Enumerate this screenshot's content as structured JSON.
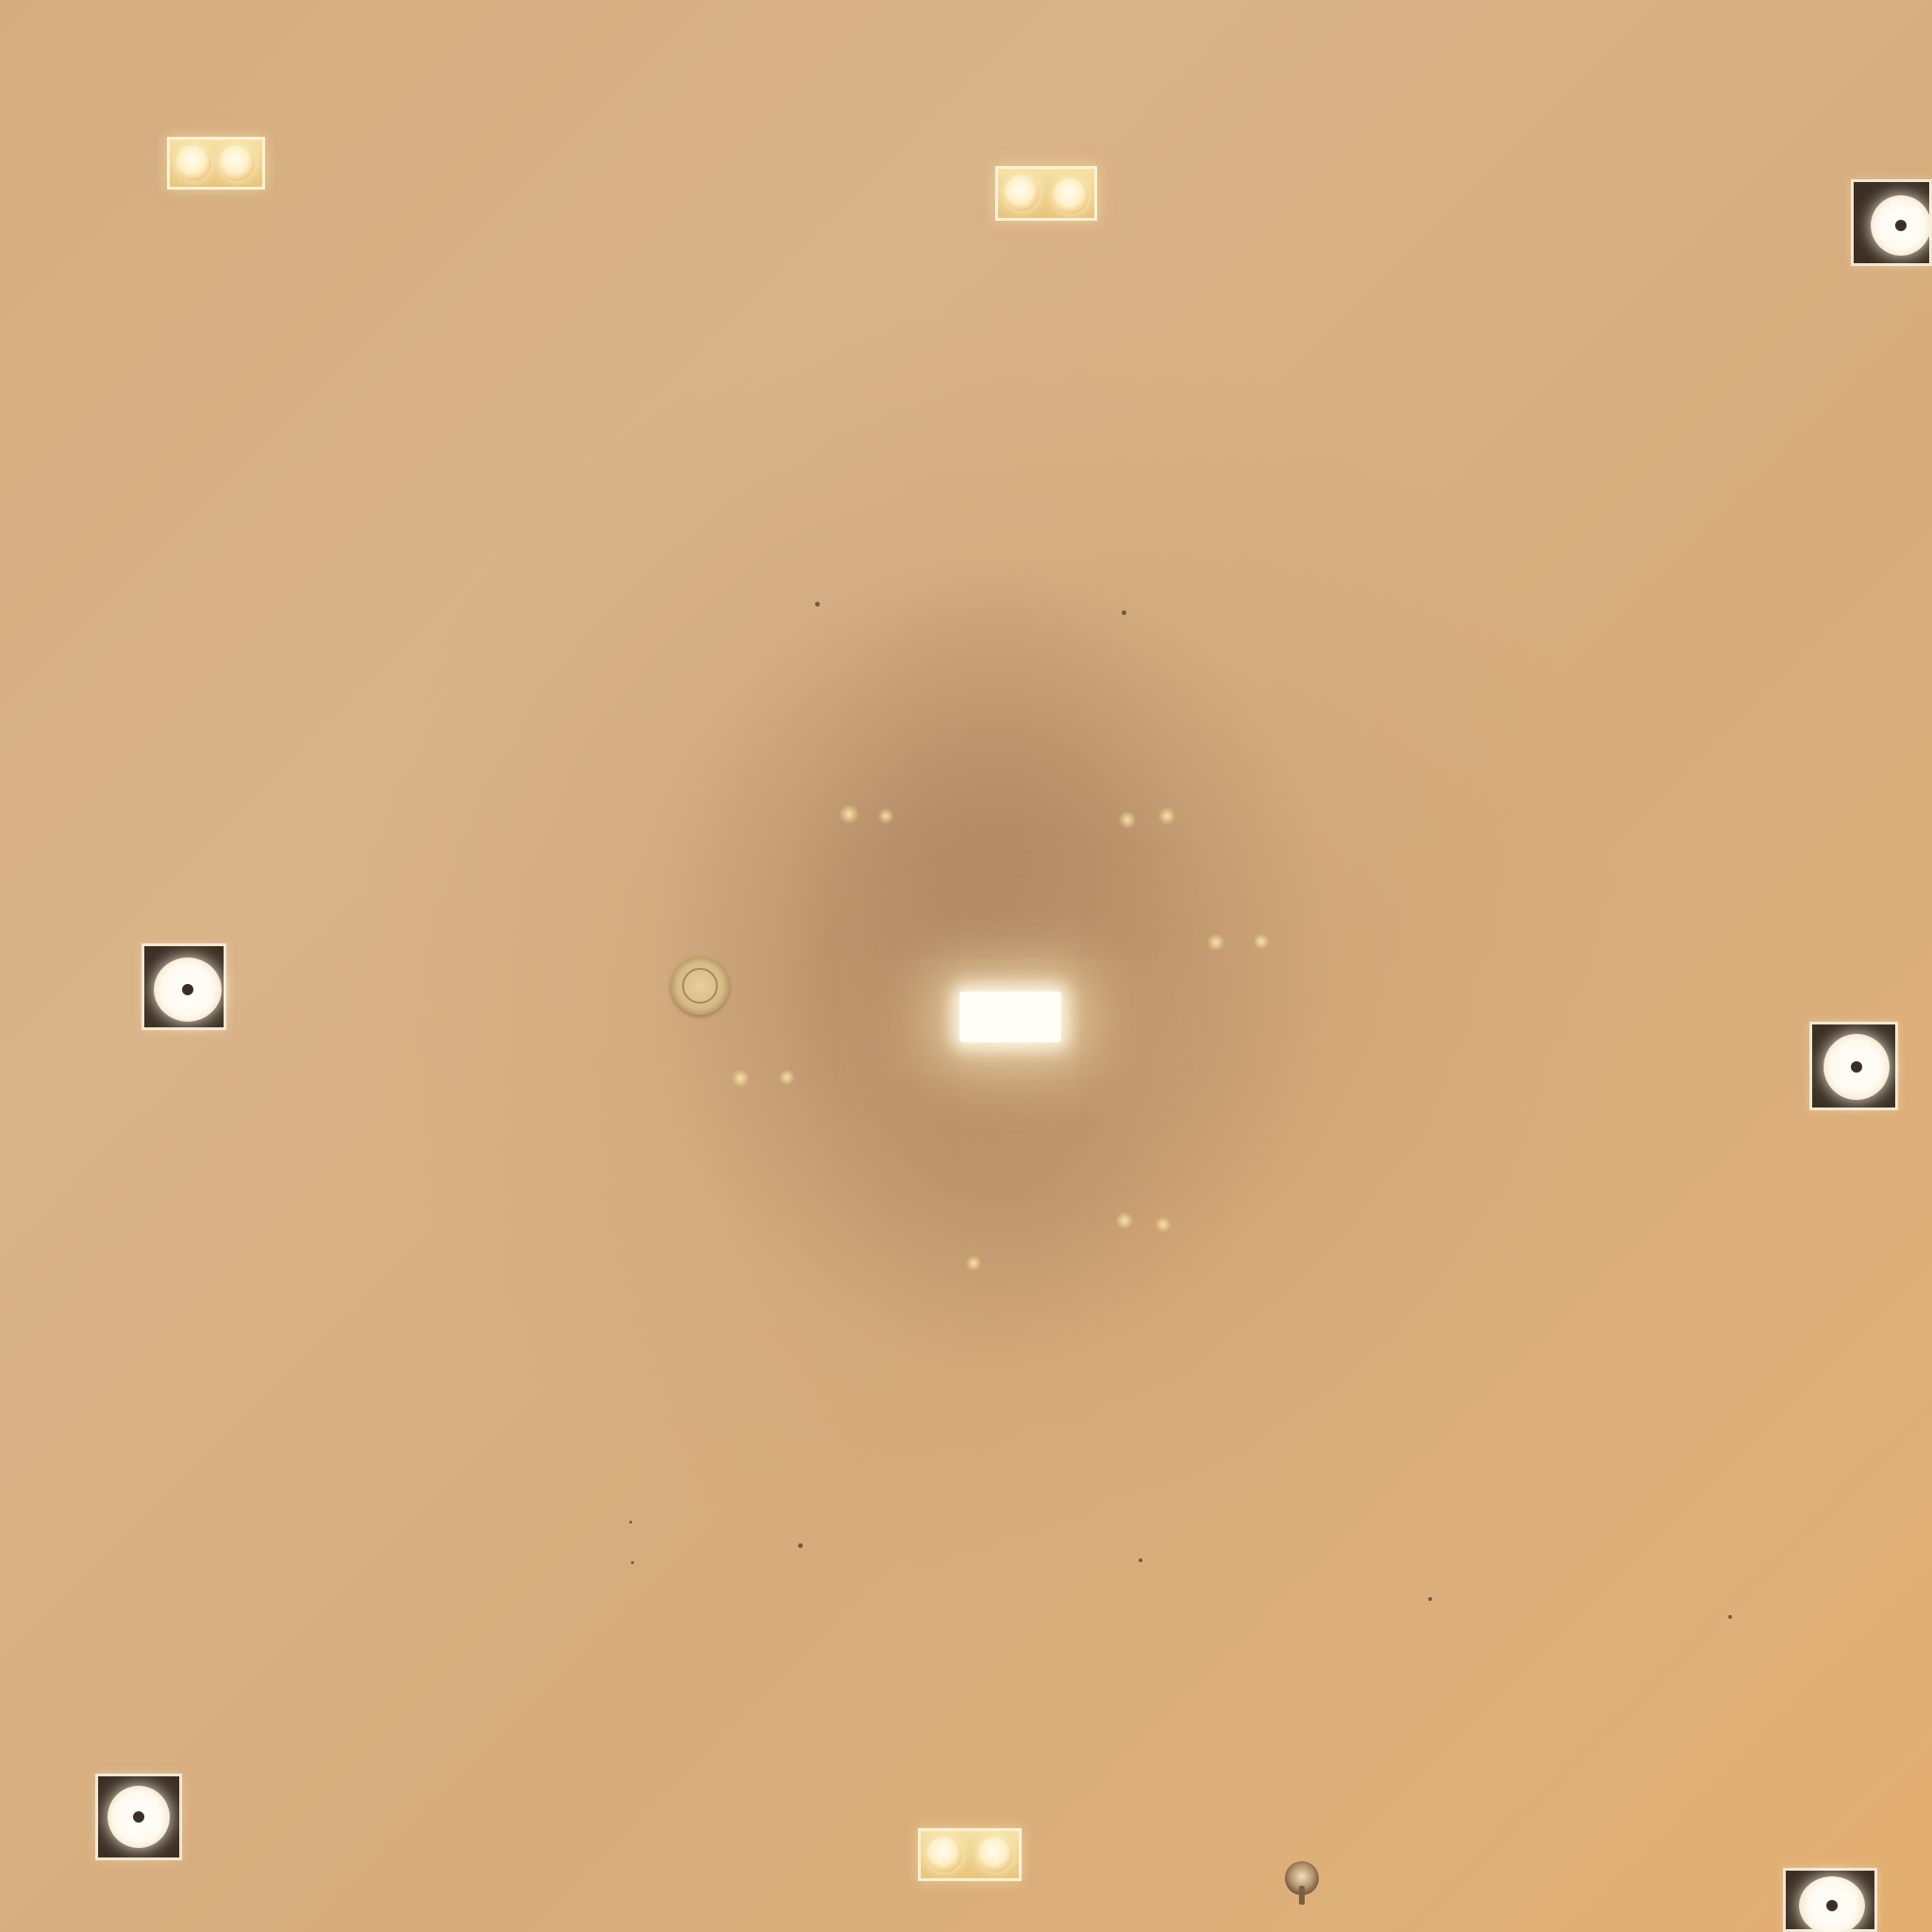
{
  "scene": {
    "subject": "ceiling-with-recessed-lights",
    "colors": {
      "ceiling": "#d7b084",
      "ceiling_shadow": "#b0906d",
      "light_core": "#fffdf6",
      "warm_glow": "#f6e2a4",
      "fixture_trim": "#f2e7d4",
      "fixture_housing": "#3b2e22"
    },
    "fixtures": {
      "twin_spotlights": 3,
      "single_downlights": 5,
      "central_panel_lights": 1,
      "smoke_detectors": 1,
      "sprinklers": 1
    }
  }
}
